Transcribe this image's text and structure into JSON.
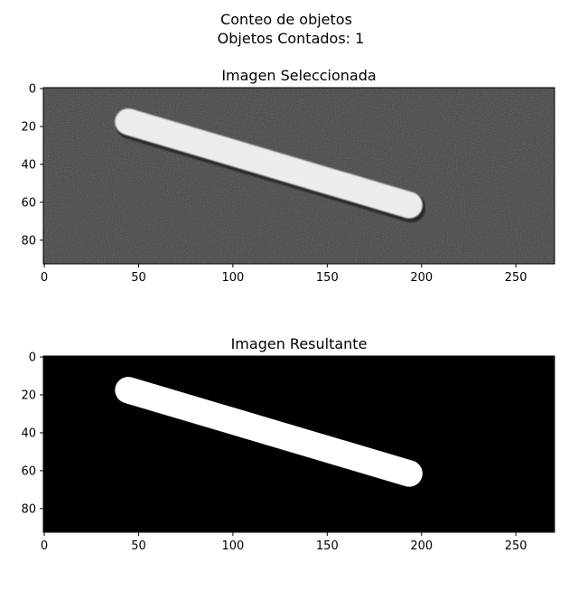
{
  "figure": {
    "suptitle_line1": "Conteo de objetos",
    "suptitle_line2": "Objetos Contados: 1"
  },
  "chart_data": [
    {
      "type": "image",
      "title": "Imagen Seleccionada",
      "image_size": {
        "width": 271,
        "height": 93
      },
      "xlim": [
        0,
        271
      ],
      "ylim": [
        93,
        0
      ],
      "xticks": [
        0,
        50,
        100,
        150,
        200,
        250
      ],
      "yticks": [
        0,
        20,
        40,
        60,
        80
      ],
      "colormap": "grayscale photo",
      "object": {
        "start": [
          45,
          18
        ],
        "end": [
          194,
          62
        ],
        "thickness": 14
      },
      "colors": {
        "background": "#434343",
        "object": "#ececec"
      }
    },
    {
      "type": "image",
      "title": "Imagen Resultante",
      "image_size": {
        "width": 271,
        "height": 93
      },
      "xlim": [
        0,
        271
      ],
      "ylim": [
        93,
        0
      ],
      "xticks": [
        0,
        50,
        100,
        150,
        200,
        250
      ],
      "yticks": [
        0,
        20,
        40,
        60,
        80
      ],
      "colormap": "binary",
      "object": {
        "start": [
          45,
          18
        ],
        "end": [
          194,
          62
        ],
        "thickness": 14
      },
      "colors": {
        "background": "#000000",
        "object": "#ffffff"
      }
    }
  ]
}
